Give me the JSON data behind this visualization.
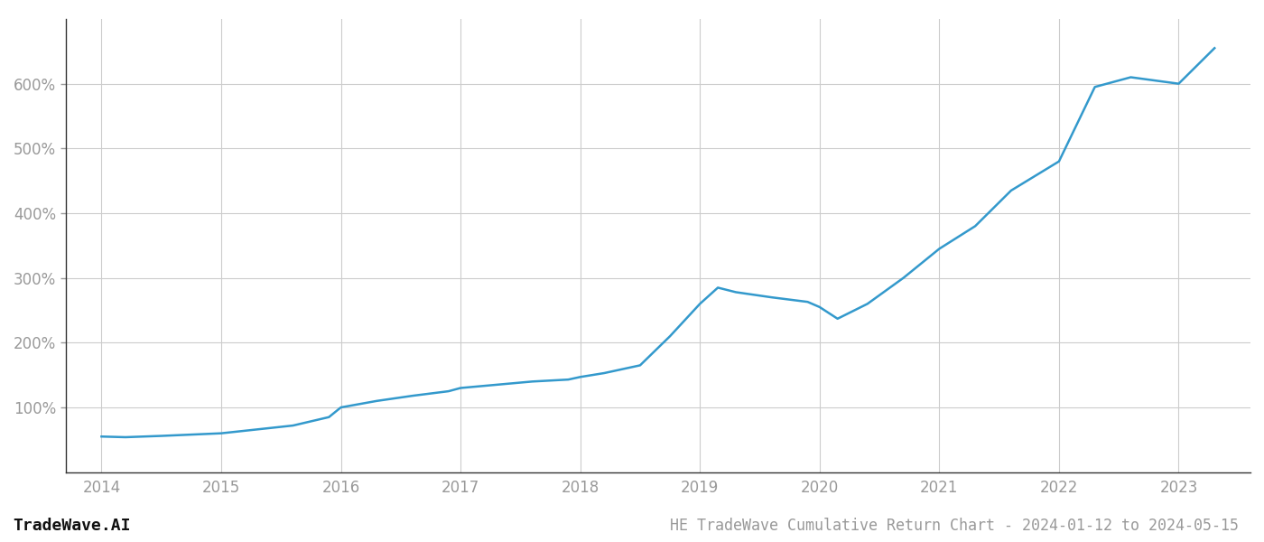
{
  "title": "HE TradeWave Cumulative Return Chart - 2024-01-12 to 2024-05-15",
  "watermark": "TradeWave.AI",
  "line_color": "#3399cc",
  "background_color": "#ffffff",
  "grid_color": "#cccccc",
  "x_values": [
    2014.0,
    2014.2,
    2014.5,
    2014.75,
    2015.0,
    2015.25,
    2015.6,
    2015.9,
    2016.0,
    2016.3,
    2016.6,
    2016.9,
    2017.0,
    2017.3,
    2017.6,
    2017.9,
    2018.0,
    2018.2,
    2018.5,
    2018.75,
    2019.0,
    2019.15,
    2019.3,
    2019.6,
    2019.9,
    2020.0,
    2020.15,
    2020.4,
    2020.7,
    2021.0,
    2021.3,
    2021.6,
    2022.0,
    2022.3,
    2022.6,
    2023.0,
    2023.3
  ],
  "y_values": [
    55,
    54,
    56,
    58,
    60,
    65,
    72,
    85,
    100,
    110,
    118,
    125,
    130,
    135,
    140,
    143,
    147,
    153,
    165,
    210,
    260,
    285,
    278,
    270,
    263,
    255,
    237,
    260,
    300,
    345,
    380,
    435,
    480,
    595,
    610,
    600,
    655
  ],
  "xlim": [
    2013.7,
    2023.6
  ],
  "ylim": [
    0,
    700
  ],
  "yticks": [
    100,
    200,
    300,
    400,
    500,
    600
  ],
  "xticks": [
    2014,
    2015,
    2016,
    2017,
    2018,
    2019,
    2020,
    2021,
    2022,
    2023
  ],
  "tick_color": "#999999",
  "tick_fontsize": 12,
  "title_fontsize": 12,
  "watermark_fontsize": 13,
  "line_width": 1.8
}
